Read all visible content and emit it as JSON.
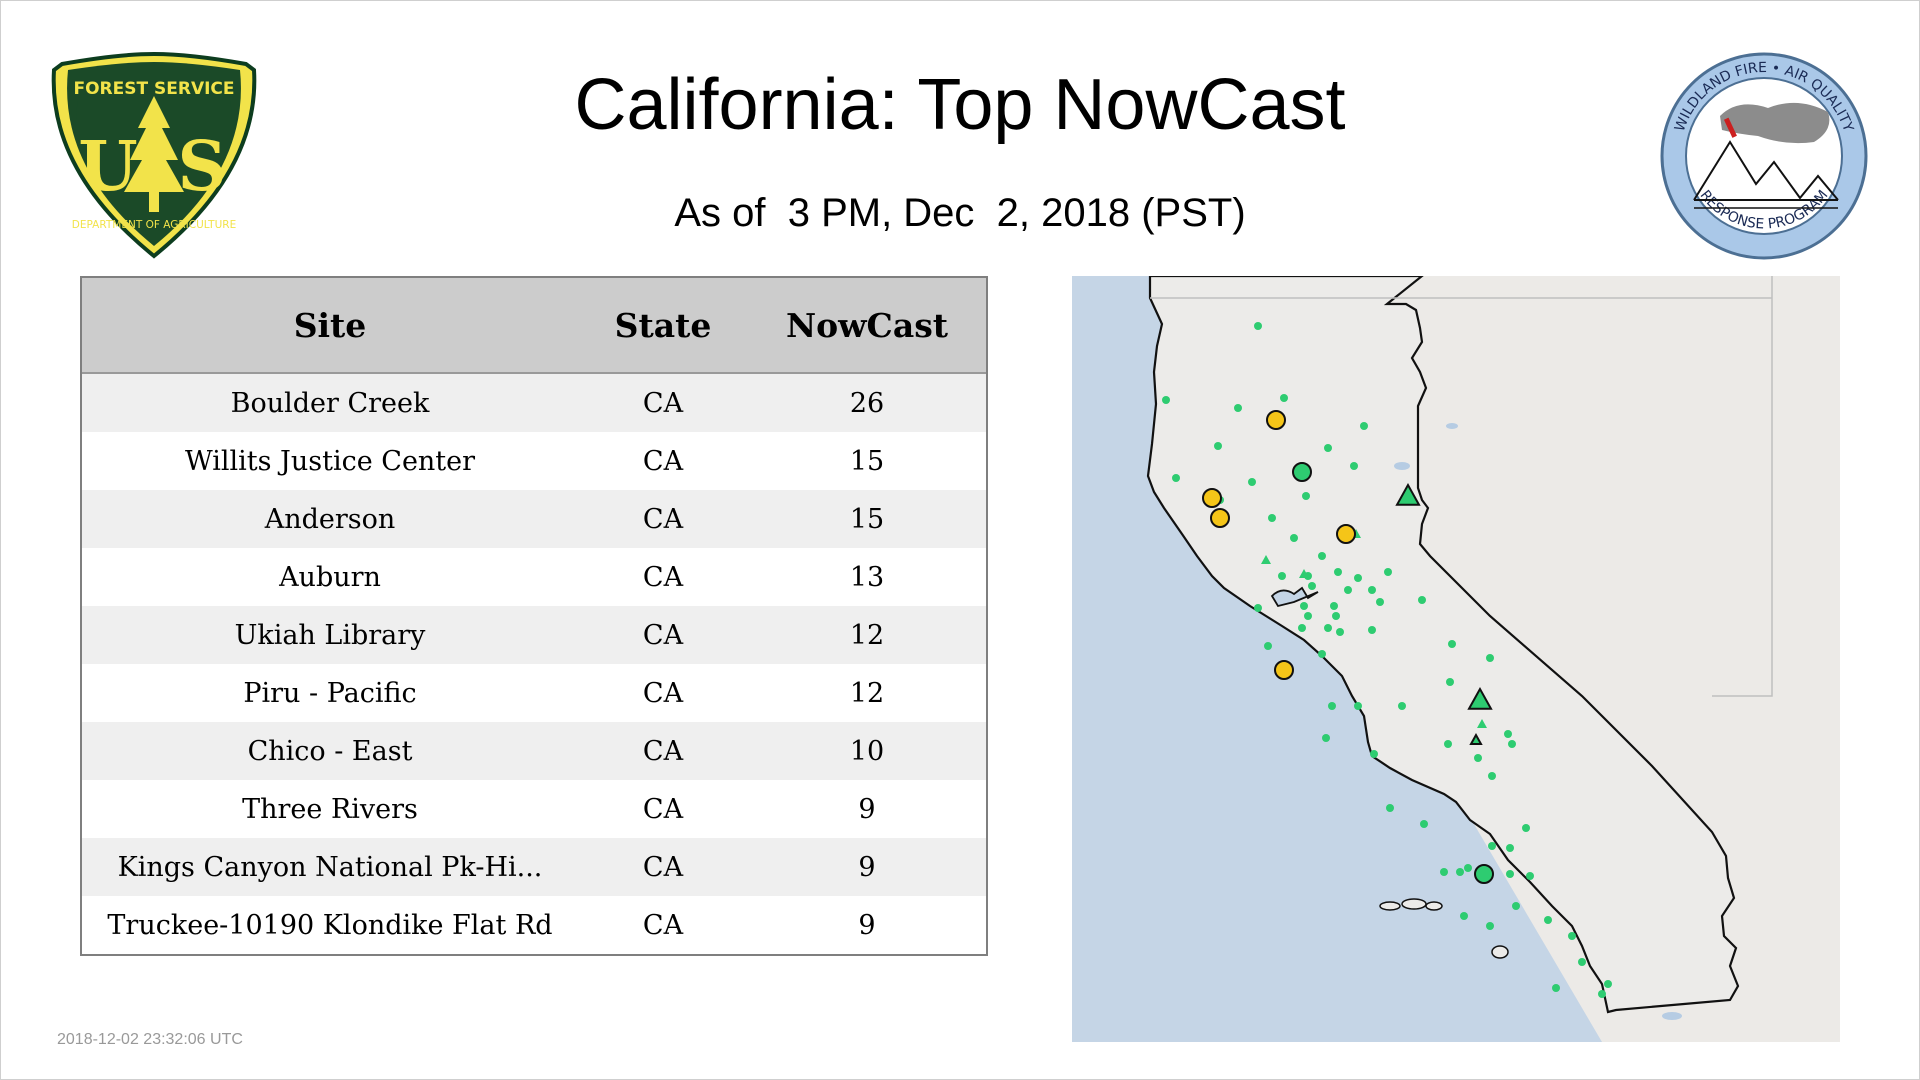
{
  "header": {
    "title": "California: Top NowCast",
    "subtitle": "As of  3 PM, Dec  2, 2018 (PST)"
  },
  "logos": {
    "forest_service": {
      "top_text": "FOREST SERVICE",
      "letters": "US",
      "bottom_text": "DEPARTMENT OF AGRICULTURE",
      "icon": "pine-tree-icon"
    },
    "wildland_fire": {
      "top_text": "WILDLAND FIRE • AIR QUALITY",
      "bottom_text": "RESPONSE PROGRAM",
      "icon": "mountain-smoke-icon"
    }
  },
  "table": {
    "columns": [
      "Site",
      "State",
      "NowCast"
    ],
    "rows": [
      {
        "site": "Boulder Creek",
        "state": "CA",
        "nowcast": "26"
      },
      {
        "site": "Willits Justice Center",
        "state": "CA",
        "nowcast": "15"
      },
      {
        "site": "Anderson",
        "state": "CA",
        "nowcast": "15"
      },
      {
        "site": "Auburn",
        "state": "CA",
        "nowcast": "13"
      },
      {
        "site": "Ukiah Library",
        "state": "CA",
        "nowcast": "12"
      },
      {
        "site": "Piru - Pacific",
        "state": "CA",
        "nowcast": "12"
      },
      {
        "site": "Chico - East",
        "state": "CA",
        "nowcast": "10"
      },
      {
        "site": "Three Rivers",
        "state": "CA",
        "nowcast": "9"
      },
      {
        "site": "Kings Canyon National Pk-Hi...",
        "state": "CA",
        "nowcast": "9"
      },
      {
        "site": "Truckee-10190 Klondike Flat Rd",
        "state": "CA",
        "nowcast": "9"
      }
    ]
  },
  "map": {
    "colors": {
      "ocean": "#c5d5e6",
      "land": "#eceae7",
      "good": "#2ecc71",
      "moderate": "#f5c518",
      "outline": "#111111"
    }
  },
  "footer": {
    "timestamp": "2018-12-02 23:32:06 UTC"
  }
}
